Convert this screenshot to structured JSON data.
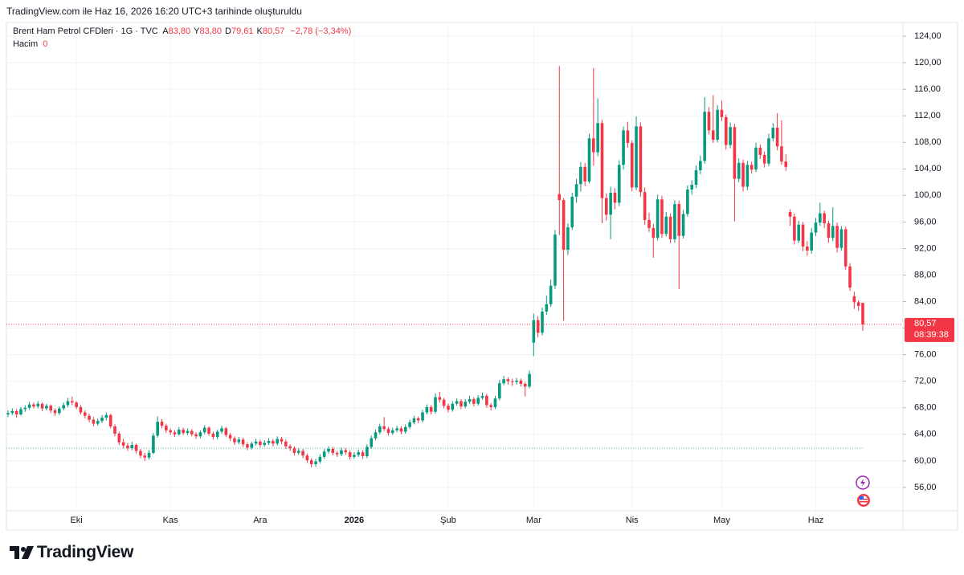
{
  "header": {
    "caption": "TradingView.com ile Haz 16, 2026 16:20 UTC+3 tarihinde oluşturuldu"
  },
  "legend": {
    "symbol": "Brent Ham Petrol CFDleri · 1G · TVC",
    "items": [
      {
        "key": "A",
        "label": "83,80"
      },
      {
        "key": "Y",
        "label": "83,80"
      },
      {
        "key": "D",
        "label": "79,61"
      },
      {
        "key": "K",
        "label": "80,57"
      }
    ],
    "change": "−2,78 (−3,34%)",
    "volume_key": "Hacim",
    "volume_label": "0"
  },
  "footer": {
    "brand": "TradingView"
  },
  "chart_data": {
    "type": "candlestick",
    "up_color": "#089981",
    "down_color": "#f23645",
    "grid": true,
    "ylim": [
      52.48,
      126.06
    ],
    "yticks": [
      {
        "value": 56,
        "label": "56,00"
      },
      {
        "value": 60,
        "label": "60,00"
      },
      {
        "value": 64,
        "label": "64,00"
      },
      {
        "value": 68,
        "label": "68,00"
      },
      {
        "value": 72,
        "label": "72,00"
      },
      {
        "value": 76,
        "label": "76,00"
      },
      {
        "value": 80,
        "label": "80,00"
      },
      {
        "value": 84,
        "label": "84,00"
      },
      {
        "value": 88,
        "label": "88,00"
      },
      {
        "value": 92,
        "label": "92,00"
      },
      {
        "value": 96,
        "label": "96,00"
      },
      {
        "value": 100,
        "label": "100,00"
      },
      {
        "value": 104,
        "label": "104,00"
      },
      {
        "value": 108,
        "label": "108,00"
      },
      {
        "value": 112,
        "label": "112,00"
      },
      {
        "value": 116,
        "label": "116,00"
      },
      {
        "value": 120,
        "label": "120,00"
      },
      {
        "value": 124,
        "label": "124,00"
      }
    ],
    "xticks": [
      {
        "value": 16,
        "label": "Eki"
      },
      {
        "value": 38,
        "label": "Kas"
      },
      {
        "value": 59,
        "label": "Ara"
      },
      {
        "value": 81,
        "label": "2026"
      },
      {
        "value": 103,
        "label": "Şub"
      },
      {
        "value": 123,
        "label": "Mar"
      },
      {
        "value": 146,
        "label": "Nis"
      },
      {
        "value": 167,
        "label": "May"
      },
      {
        "value": 189,
        "label": "Haz"
      }
    ],
    "price_label": {
      "value": 80.57,
      "label": "80,57",
      "countdown": "08:39:38"
    },
    "reference_line": 61.9,
    "candles": [
      [
        67.0,
        67.6,
        66.6,
        67.2
      ],
      [
        67.2,
        67.9,
        66.9,
        67.5
      ],
      [
        67.5,
        67.8,
        66.5,
        67.0
      ],
      [
        67.0,
        68.1,
        66.8,
        67.8
      ],
      [
        67.8,
        68.4,
        67.4,
        68.0
      ],
      [
        68.0,
        68.9,
        67.7,
        68.5
      ],
      [
        68.5,
        68.8,
        67.9,
        68.2
      ],
      [
        68.2,
        69.0,
        67.9,
        68.6
      ],
      [
        68.6,
        68.8,
        67.5,
        67.9
      ],
      [
        67.9,
        68.6,
        67.6,
        68.3
      ],
      [
        68.3,
        68.5,
        67.2,
        67.6
      ],
      [
        67.6,
        67.9,
        66.8,
        67.2
      ],
      [
        67.2,
        68.2,
        66.9,
        67.9
      ],
      [
        67.9,
        68.8,
        67.6,
        68.4
      ],
      [
        68.4,
        69.5,
        68.1,
        69.0
      ],
      [
        69.0,
        69.7,
        68.4,
        68.8
      ],
      [
        68.8,
        69.0,
        67.8,
        68.1
      ],
      [
        68.1,
        68.4,
        67.0,
        67.3
      ],
      [
        67.3,
        67.6,
        66.4,
        66.8
      ],
      [
        66.8,
        67.1,
        65.8,
        66.2
      ],
      [
        66.2,
        66.6,
        65.2,
        65.6
      ],
      [
        65.6,
        66.4,
        65.3,
        66.0
      ],
      [
        66.0,
        66.9,
        65.7,
        66.5
      ],
      [
        66.5,
        67.3,
        66.1,
        66.9
      ],
      [
        66.9,
        67.1,
        64.9,
        65.2
      ],
      [
        65.2,
        65.5,
        63.7,
        64.1
      ],
      [
        64.1,
        64.4,
        62.4,
        62.8
      ],
      [
        62.8,
        63.3,
        61.9,
        62.3
      ],
      [
        62.3,
        62.7,
        61.5,
        61.9
      ],
      [
        61.9,
        62.9,
        61.6,
        62.4
      ],
      [
        62.4,
        62.6,
        61.1,
        61.5
      ],
      [
        61.5,
        61.8,
        60.4,
        60.8
      ],
      [
        60.8,
        61.2,
        60.0,
        60.5
      ],
      [
        60.5,
        61.6,
        60.2,
        61.2
      ],
      [
        61.2,
        64.2,
        61.0,
        63.8
      ],
      [
        63.8,
        66.7,
        63.5,
        65.9
      ],
      [
        65.9,
        66.3,
        64.9,
        65.3
      ],
      [
        65.3,
        65.6,
        64.2,
        64.6
      ],
      [
        64.6,
        64.9,
        63.9,
        64.3
      ],
      [
        64.3,
        64.6,
        63.6,
        64.0
      ],
      [
        64.0,
        65.1,
        63.8,
        64.7
      ],
      [
        64.7,
        65.0,
        63.9,
        64.2
      ],
      [
        64.2,
        64.9,
        63.9,
        64.5
      ],
      [
        64.5,
        64.8,
        63.7,
        64.0
      ],
      [
        64.0,
        64.3,
        63.3,
        63.7
      ],
      [
        63.7,
        64.6,
        63.4,
        64.3
      ],
      [
        64.3,
        65.4,
        64.0,
        65.0
      ],
      [
        65.0,
        65.2,
        63.8,
        64.1
      ],
      [
        64.1,
        64.4,
        63.2,
        63.6
      ],
      [
        63.6,
        64.7,
        63.3,
        64.4
      ],
      [
        64.4,
        65.3,
        64.1,
        64.9
      ],
      [
        64.9,
        65.1,
        63.6,
        63.9
      ],
      [
        63.9,
        64.2,
        63.0,
        63.4
      ],
      [
        63.4,
        63.7,
        62.4,
        62.8
      ],
      [
        62.8,
        63.6,
        62.5,
        63.2
      ],
      [
        63.2,
        63.5,
        62.1,
        62.5
      ],
      [
        62.5,
        62.8,
        61.6,
        62.0
      ],
      [
        62.0,
        62.9,
        61.7,
        62.6
      ],
      [
        62.6,
        63.3,
        62.3,
        62.9
      ],
      [
        62.9,
        63.2,
        62.0,
        62.4
      ],
      [
        62.4,
        63.1,
        62.1,
        62.7
      ],
      [
        62.7,
        63.4,
        62.4,
        63.0
      ],
      [
        63.0,
        63.3,
        62.2,
        62.6
      ],
      [
        62.6,
        63.7,
        62.3,
        63.3
      ],
      [
        63.3,
        63.6,
        62.5,
        62.9
      ],
      [
        62.9,
        63.2,
        61.8,
        62.2
      ],
      [
        62.2,
        62.5,
        61.5,
        61.9
      ],
      [
        61.9,
        62.2,
        60.8,
        61.2
      ],
      [
        61.2,
        61.9,
        60.9,
        61.5
      ],
      [
        61.5,
        61.8,
        60.4,
        60.8
      ],
      [
        60.8,
        61.1,
        59.7,
        60.1
      ],
      [
        60.1,
        60.4,
        59.0,
        59.5
      ],
      [
        59.5,
        60.3,
        59.1,
        59.9
      ],
      [
        59.9,
        61.0,
        59.6,
        60.6
      ],
      [
        60.6,
        61.8,
        60.3,
        61.4
      ],
      [
        61.4,
        62.2,
        61.1,
        61.8
      ],
      [
        61.8,
        62.1,
        60.8,
        61.2
      ],
      [
        61.2,
        61.5,
        60.6,
        61.0
      ],
      [
        61.0,
        62.0,
        60.7,
        61.6
      ],
      [
        61.6,
        61.9,
        60.9,
        61.3
      ],
      [
        61.3,
        61.6,
        60.2,
        60.6
      ],
      [
        60.6,
        61.3,
        60.3,
        60.9
      ],
      [
        60.9,
        61.7,
        60.6,
        61.3
      ],
      [
        61.3,
        61.6,
        60.3,
        60.7
      ],
      [
        60.7,
        62.5,
        60.4,
        62.1
      ],
      [
        62.1,
        63.8,
        61.8,
        63.4
      ],
      [
        63.4,
        64.7,
        63.1,
        64.3
      ],
      [
        64.3,
        65.6,
        64.0,
        65.2
      ],
      [
        65.2,
        66.6,
        64.5,
        64.8
      ],
      [
        64.8,
        65.1,
        63.8,
        64.2
      ],
      [
        64.2,
        65.0,
        63.9,
        64.6
      ],
      [
        64.6,
        65.3,
        64.3,
        64.9
      ],
      [
        64.9,
        65.2,
        64.0,
        64.4
      ],
      [
        64.4,
        65.5,
        64.1,
        65.1
      ],
      [
        65.1,
        66.2,
        64.8,
        65.8
      ],
      [
        65.8,
        66.8,
        65.5,
        66.4
      ],
      [
        66.4,
        66.7,
        65.7,
        66.1
      ],
      [
        66.1,
        67.7,
        65.8,
        67.3
      ],
      [
        67.3,
        68.5,
        67.0,
        68.1
      ],
      [
        68.1,
        68.4,
        67.0,
        67.4
      ],
      [
        67.4,
        70.2,
        67.1,
        69.6
      ],
      [
        69.6,
        70.4,
        68.8,
        69.2
      ],
      [
        69.2,
        69.5,
        67.9,
        68.3
      ],
      [
        68.3,
        68.6,
        67.3,
        67.7
      ],
      [
        67.7,
        69.0,
        67.4,
        68.6
      ],
      [
        68.6,
        69.4,
        68.3,
        69.0
      ],
      [
        69.0,
        69.3,
        67.8,
        68.2
      ],
      [
        68.2,
        69.3,
        67.9,
        68.9
      ],
      [
        68.9,
        69.8,
        68.6,
        69.3
      ],
      [
        69.3,
        69.6,
        68.2,
        68.6
      ],
      [
        68.6,
        69.9,
        68.3,
        69.5
      ],
      [
        69.5,
        70.3,
        69.2,
        69.8
      ],
      [
        69.8,
        70.1,
        68.0,
        68.4
      ],
      [
        68.4,
        68.7,
        67.6,
        68.1
      ],
      [
        68.1,
        69.8,
        67.8,
        69.4
      ],
      [
        69.4,
        72.2,
        69.1,
        71.7
      ],
      [
        71.7,
        72.8,
        71.4,
        72.3
      ],
      [
        72.3,
        72.6,
        71.5,
        72.0
      ],
      [
        72.0,
        72.4,
        71.3,
        71.9
      ],
      [
        71.9,
        72.5,
        71.5,
        72.1
      ],
      [
        72.1,
        72.4,
        71.2,
        71.6
      ],
      [
        71.6,
        71.9,
        69.7,
        71.2
      ],
      [
        71.2,
        73.6,
        70.9,
        73.1
      ],
      [
        77.8,
        82.2,
        75.8,
        81.2
      ],
      [
        81.2,
        81.8,
        78.6,
        79.3
      ],
      [
        79.3,
        83.1,
        78.9,
        82.5
      ],
      [
        82.5,
        84.9,
        82.0,
        83.6
      ],
      [
        83.6,
        87.3,
        83.2,
        86.4
      ],
      [
        86.4,
        94.8,
        85.9,
        94.1
      ],
      [
        100.2,
        119.5,
        94.0,
        99.3
      ],
      [
        99.3,
        99.6,
        81.1,
        91.8
      ],
      [
        91.8,
        95.8,
        91.0,
        95.2
      ],
      [
        95.2,
        100.4,
        94.8,
        99.8
      ],
      [
        99.8,
        102.5,
        98.9,
        101.7
      ],
      [
        101.7,
        105.0,
        100.6,
        104.3
      ],
      [
        104.3,
        104.9,
        101.4,
        102.1
      ],
      [
        102.1,
        109.3,
        101.8,
        108.6
      ],
      [
        108.6,
        119.2,
        104.5,
        106.5
      ],
      [
        106.5,
        114.6,
        105.9,
        110.9
      ],
      [
        110.9,
        111.4,
        95.8,
        99.6
      ],
      [
        99.6,
        100.3,
        96.2,
        97.1
      ],
      [
        97.1,
        101.3,
        93.4,
        100.4
      ],
      [
        100.4,
        101.1,
        97.9,
        98.9
      ],
      [
        98.9,
        105.3,
        98.4,
        104.6
      ],
      [
        104.6,
        110.4,
        103.9,
        109.8
      ],
      [
        109.8,
        111.1,
        107.2,
        107.9
      ],
      [
        107.9,
        108.3,
        100.6,
        101.2
      ],
      [
        101.2,
        111.9,
        100.8,
        110.4
      ],
      [
        110.4,
        111.0,
        99.8,
        100.5
      ],
      [
        100.5,
        101.2,
        95.6,
        96.3
      ],
      [
        96.3,
        97.4,
        94.5,
        95.1
      ],
      [
        95.1,
        95.7,
        90.6,
        93.6
      ],
      [
        93.6,
        100.1,
        93.2,
        99.4
      ],
      [
        99.4,
        99.9,
        93.6,
        94.2
      ],
      [
        94.2,
        97.5,
        93.8,
        96.8
      ],
      [
        96.8,
        97.3,
        92.8,
        93.4
      ],
      [
        93.4,
        99.3,
        92.9,
        98.7
      ],
      [
        98.7,
        99.2,
        85.9,
        93.9
      ],
      [
        93.9,
        97.8,
        93.5,
        97.2
      ],
      [
        97.2,
        101.5,
        96.8,
        100.9
      ],
      [
        100.9,
        102.3,
        100.1,
        101.6
      ],
      [
        101.6,
        104.5,
        101.1,
        103.8
      ],
      [
        103.8,
        106.0,
        103.2,
        105.2
      ],
      [
        105.2,
        114.8,
        104.8,
        112.6
      ],
      [
        112.6,
        113.3,
        109.2,
        109.8
      ],
      [
        109.8,
        115.1,
        107.9,
        108.4
      ],
      [
        108.4,
        113.6,
        108.0,
        112.9
      ],
      [
        112.9,
        114.3,
        111.2,
        111.8
      ],
      [
        111.8,
        112.2,
        106.9,
        107.6
      ],
      [
        107.6,
        111.0,
        107.1,
        110.3
      ],
      [
        110.3,
        110.8,
        96.1,
        102.5
      ],
      [
        102.5,
        105.6,
        102.0,
        104.9
      ],
      [
        104.9,
        105.4,
        100.6,
        101.3
      ],
      [
        101.3,
        105.2,
        100.8,
        104.6
      ],
      [
        104.6,
        105.1,
        103.3,
        103.9
      ],
      [
        103.9,
        107.9,
        103.5,
        107.2
      ],
      [
        107.2,
        107.7,
        105.5,
        106.1
      ],
      [
        106.1,
        106.6,
        104.2,
        104.8
      ],
      [
        104.8,
        109.3,
        104.4,
        108.6
      ],
      [
        108.6,
        110.9,
        108.1,
        110.2
      ],
      [
        110.2,
        112.4,
        106.8,
        107.4
      ],
      [
        107.4,
        111.3,
        104.6,
        105.1
      ],
      [
        105.1,
        106.2,
        103.7,
        104.3
      ],
      [
        97.5,
        97.9,
        95.4,
        96.8
      ],
      [
        96.8,
        97.3,
        92.6,
        93.2
      ],
      [
        93.2,
        96.2,
        92.8,
        95.6
      ],
      [
        95.6,
        96.0,
        91.6,
        92.3
      ],
      [
        92.3,
        93.1,
        90.9,
        91.7
      ],
      [
        91.7,
        95.1,
        91.2,
        94.4
      ],
      [
        94.4,
        96.6,
        93.9,
        95.9
      ],
      [
        95.9,
        98.9,
        95.4,
        97.3
      ],
      [
        97.3,
        97.7,
        95.1,
        95.8
      ],
      [
        95.8,
        96.2,
        92.9,
        93.6
      ],
      [
        93.6,
        98.2,
        93.1,
        95.4
      ],
      [
        95.4,
        95.9,
        91.4,
        92.1
      ],
      [
        92.1,
        95.4,
        91.7,
        94.9
      ],
      [
        94.9,
        95.3,
        88.8,
        89.3
      ],
      [
        89.3,
        89.8,
        85.6,
        86.1
      ],
      [
        84.8,
        85.5,
        82.9,
        83.9
      ],
      [
        83.9,
        84.2,
        82.6,
        83.35
      ],
      [
        83.8,
        83.8,
        79.61,
        80.57
      ]
    ]
  }
}
